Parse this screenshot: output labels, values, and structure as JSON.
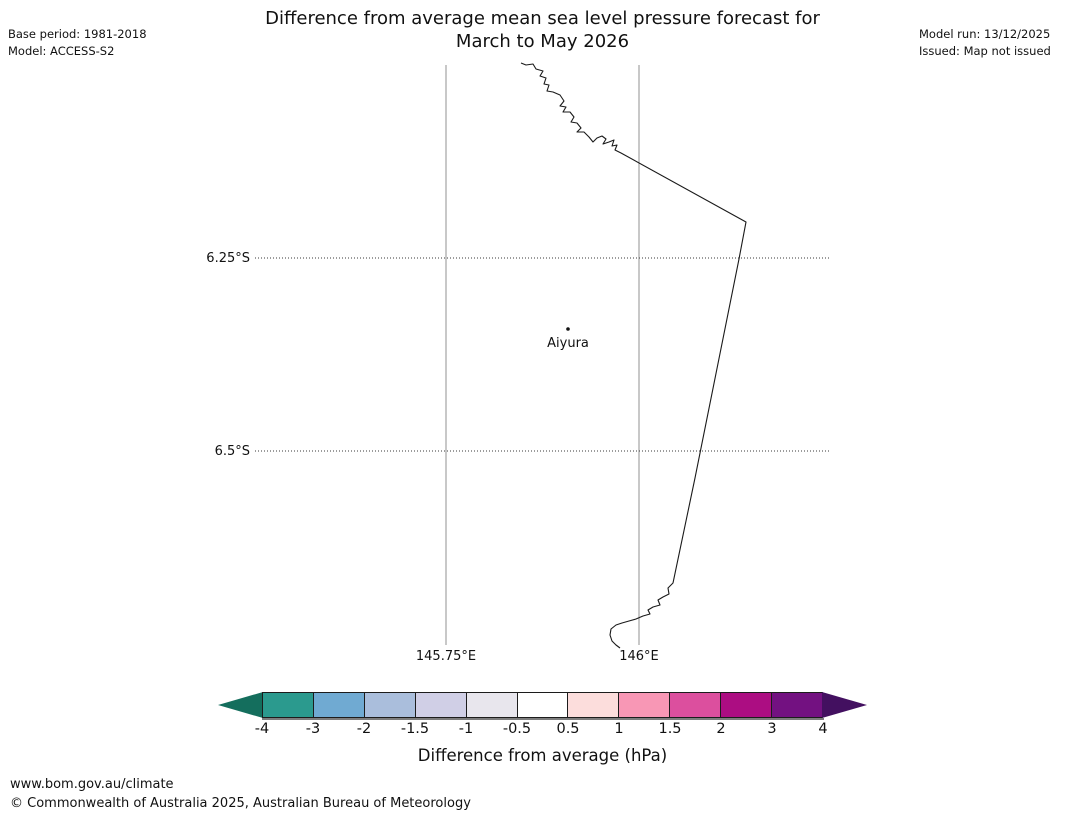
{
  "header": {
    "title_line1": "Difference from average mean sea level pressure forecast for",
    "title_line2": "March to May 2026",
    "base_period": "Base period: 1981-2018",
    "model": "Model: ACCESS-S2",
    "model_run": "Model run: 13/12/2025",
    "issued": "Issued: Map not issued"
  },
  "map": {
    "lat_label_1": "6.25°S",
    "lat_label_2": "6.5°S",
    "lon_label_1": "145.75°E",
    "lon_label_2": "146°E",
    "station_name": "Aiyura"
  },
  "colorbar": {
    "title": "Difference from average (hPa)",
    "ticks": [
      "-4",
      "-3",
      "-2",
      "-1.5",
      "-1",
      "-0.5",
      "0.5",
      "1",
      "1.5",
      "2",
      "3",
      "4"
    ],
    "segment_colors": [
      "#2b9a8e",
      "#70aad2",
      "#aabedc",
      "#d0cfe6",
      "#e8e6ed",
      "#ffffff",
      "#fcdddc",
      "#f897b5",
      "#dc4f9e",
      "#ac0d82",
      "#731181"
    ],
    "arrow_left_color": "#146e5d",
    "arrow_right_color": "#431060",
    "units": "hPa"
  },
  "footer": {
    "url": "www.bom.gov.au/climate",
    "copyright": "© Commonwealth of Australia 2025, Australian Bureau of Meteorology"
  }
}
